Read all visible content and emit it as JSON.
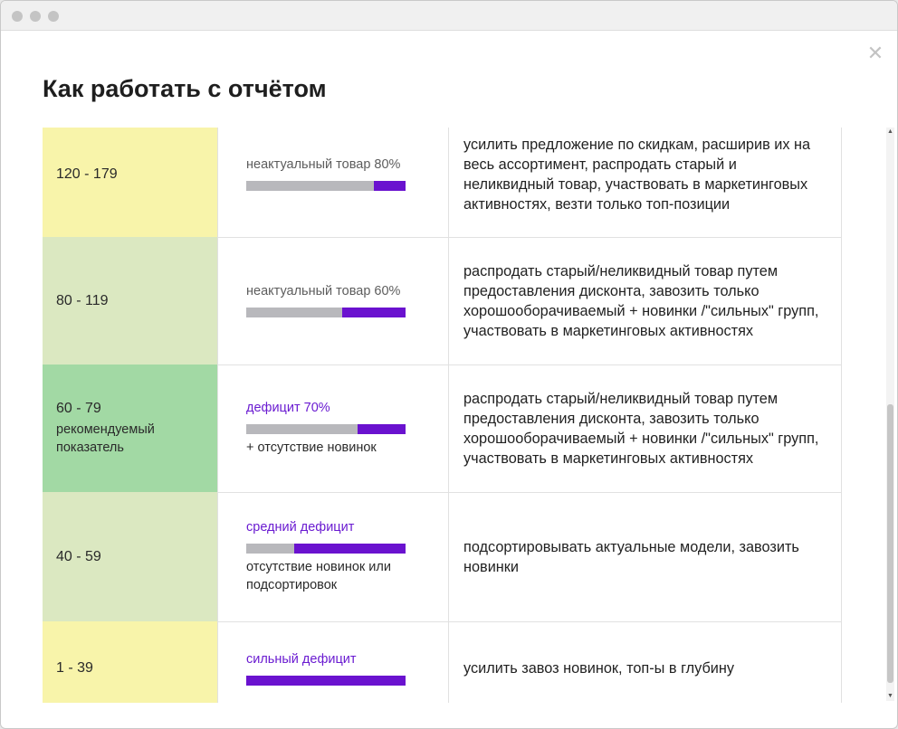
{
  "window": {
    "dots": [
      "dot",
      "dot",
      "dot"
    ],
    "close_icon": "close-icon"
  },
  "modal": {
    "title": "Как работать с отчётом"
  },
  "colors": {
    "accent": "#6a12cf",
    "bar_bg": "#b8b8bc",
    "yellow": "#f8f4aa",
    "light_green": "#dbe8c1",
    "green": "#a2d9a4"
  },
  "rows": [
    {
      "range": "120 - 179",
      "note": "",
      "label": "неактуальный товар 80%",
      "label_accent": false,
      "fill": 0.2,
      "sub": "",
      "action": "усилить предложение по скидкам, расширив их на весь ассортимент, распродать старый и неликвидный товар, участвовать в маркетинговых активностях, везти только топ-позиции",
      "bg": "#f8f4aa"
    },
    {
      "range": "80 - 119",
      "note": "",
      "label": "неактуальный товар 60%",
      "label_accent": false,
      "fill": 0.4,
      "sub": "",
      "action": "распродать старый/неликвидный товар путем предоставления дисконта, завозить только хорошооборачиваемый + новинки /\"сильных\" групп, участвовать в маркетинговых активностях",
      "bg": "#dbe8c1"
    },
    {
      "range": "60 - 79",
      "note": "рекомендуемый показатель",
      "label": "дефицит 70%",
      "label_accent": true,
      "fill": 0.3,
      "sub": "+ отсутствие новинок",
      "action": "распродать старый/неликвидный товар путем предоставления дисконта, завозить только хорошооборачиваемый + новинки /\"сильных\" групп, участвовать в маркетинговых активностях",
      "bg": "#a2d9a4"
    },
    {
      "range": "40 - 59",
      "note": "",
      "label": "средний дефицит",
      "label_accent": true,
      "fill": 0.7,
      "sub": "отсутствие новинок или подсортировок",
      "action": "подсортировывать актуальные модели, завозить новинки",
      "bg": "#dbe8c1"
    },
    {
      "range": "1 - 39",
      "note": "",
      "label": "сильный дефицит",
      "label_accent": true,
      "fill": 1.0,
      "sub": "",
      "action": "усилить завоз новинок, топ-ы в глубину",
      "bg": "#f8f4aa"
    }
  ]
}
